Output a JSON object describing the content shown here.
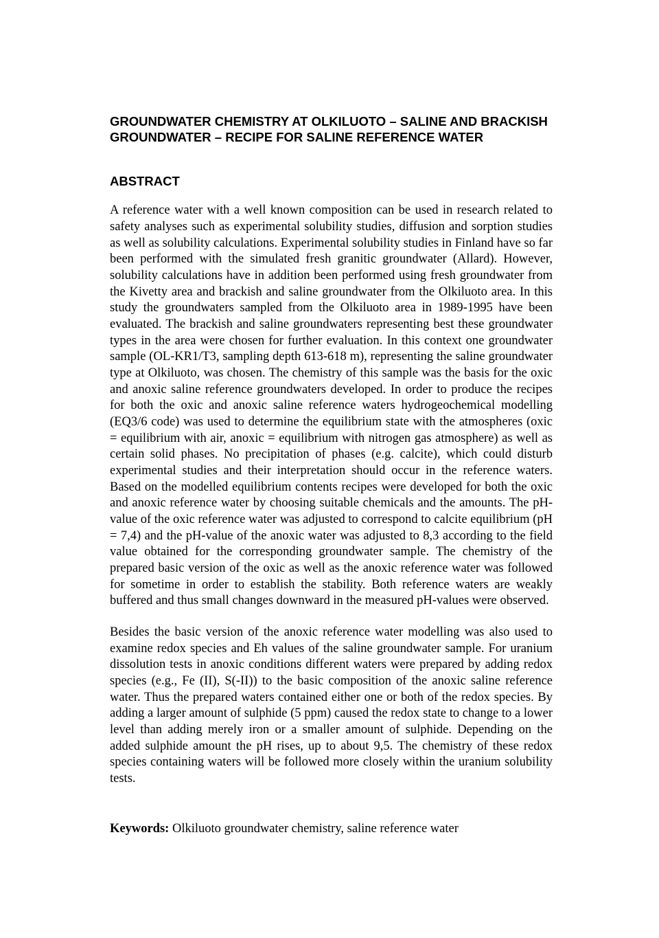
{
  "title_line1": "GROUNDWATER CHEMISTRY AT OLKILUOTO – SALINE AND BRACKISH",
  "title_line2": "GROUNDWATER – RECIPE FOR SALINE REFERENCE WATER",
  "abstract_heading": "ABSTRACT",
  "para1": "A reference water with a well known composition can be used in research related to safety analyses such as experimental solubility studies, diffusion and sorption studies as well as solubility calculations. Experimental solubility studies in Finland have so far been performed with the simulated fresh granitic groundwater (Allard). However, solubility calculations have in addition been performed using fresh groundwater from the Kivetty area and brackish and saline groundwater from the Olkiluoto area. In this study the groundwaters sampled from the Olkiluoto area in 1989-1995 have been evaluated. The brackish and saline groundwaters representing best these groundwater types in the area were chosen for further evaluation. In this context one groundwater sample (OL-KR1/T3, sampling depth 613-618 m), representing the saline groundwater type at Olkiluoto, was chosen. The chemistry of this sample was the basis for the oxic and anoxic saline reference groundwaters developed. In order to produce the recipes for both the oxic and anoxic saline reference waters hydrogeochemical modelling (EQ3/6 code) was used to determine the equilibrium state with the atmospheres (oxic = equilibrium with air, anoxic = equilibrium with nitrogen gas atmosphere) as well as certain solid phases. No precipitation of phases (e.g. calcite), which could disturb experimental studies and their interpretation should occur in the reference waters. Based on the modelled equilibrium contents recipes were developed for both the oxic and anoxic reference water by choosing suitable chemicals and the amounts. The pH-value of the oxic reference water was adjusted to correspond to calcite equilibrium (pH = 7,4) and the pH-value of the anoxic water was adjusted to 8,3 according to the field value obtained for the corresponding groundwater sample. The chemistry of the prepared basic version of the oxic as well as the anoxic reference water was followed for sometime in order to establish the stability. Both reference waters are weakly buffered and thus small changes downward in the measured pH-values were observed.",
  "para2": "Besides the basic version of the anoxic reference water modelling was also used to examine redox species and Eh values of the saline groundwater sample. For uranium dissolution tests in anoxic conditions different waters were prepared by adding redox species (e.g., Fe (II), S(-II)) to the basic composition of the anoxic saline reference water. Thus the prepared waters contained either one or both of the redox species. By adding a larger amount of sulphide (5 ppm) caused the redox state to change to a lower level than adding merely iron or a smaller amount of sulphide. Depending on the added sulphide amount the pH rises, up to about 9,5. The chemistry of these redox species containing waters will be followed more closely within the uranium solubility tests.",
  "keywords_label": "Keywords:",
  "keywords_text": " Olkiluoto groundwater chemistry, saline reference water"
}
